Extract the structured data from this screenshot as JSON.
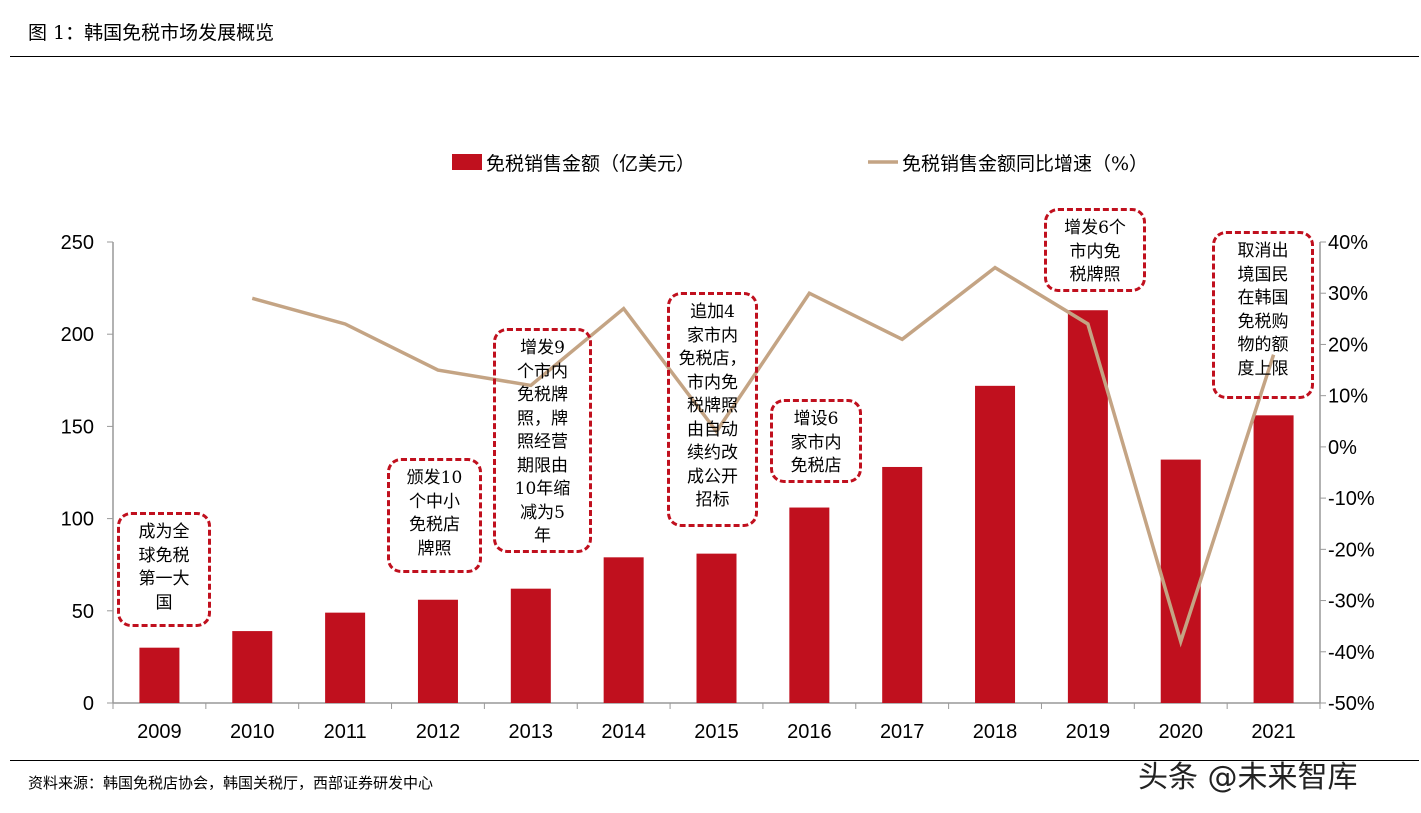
{
  "header": {
    "title": "图 1：韩国免税市场发展概览"
  },
  "footer": {
    "source": "资料来源：韩国免税店协会，韩国关税厅，西部证券研发中心",
    "watermark": "头条 @未来智库"
  },
  "chart_data": {
    "type": "bar+line",
    "categories": [
      "2009",
      "2010",
      "2011",
      "2012",
      "2013",
      "2014",
      "2015",
      "2016",
      "2017",
      "2018",
      "2019",
      "2020",
      "2021"
    ],
    "series": [
      {
        "name": "免税销售金额（亿美元）",
        "type": "bar",
        "axis": "left",
        "color": "#c0101e",
        "values": [
          30,
          39,
          49,
          56,
          62,
          79,
          81,
          106,
          128,
          172,
          213,
          132,
          156
        ]
      },
      {
        "name": "免税销售金额同比增速（%）",
        "type": "line",
        "axis": "right",
        "color": "#c4a484",
        "values": [
          null,
          29,
          24,
          15,
          12,
          27,
          3,
          30,
          21,
          35,
          24,
          -38,
          18
        ]
      }
    ],
    "left_axis": {
      "ylim": [
        0,
        250
      ],
      "ticks": [
        "0",
        "50",
        "100",
        "150",
        "200",
        "250"
      ]
    },
    "right_axis": {
      "ylim": [
        -50,
        40
      ],
      "ticks": [
        "-50%",
        "-40%",
        "-30%",
        "-20%",
        "-10%",
        "0%",
        "10%",
        "20%",
        "30%",
        "40%"
      ]
    },
    "legend": "top",
    "grid": false,
    "annotations": [
      {
        "year": "2009",
        "lines": [
          "成为全",
          "球免税",
          "第一大",
          "国"
        ]
      },
      {
        "year": "2012",
        "lines": [
          "颁发10",
          "个中小",
          "免税店",
          "牌照"
        ]
      },
      {
        "year": "2013",
        "lines": [
          "增发9",
          "个市内",
          "免税牌",
          "照，牌",
          "照经营",
          "期限由",
          "10年缩",
          "减为5",
          "年"
        ]
      },
      {
        "year": "2015",
        "lines": [
          "追加4",
          "家市内",
          "免税店，",
          "市内免",
          "税牌照",
          "由自动",
          "续约改",
          "成公开",
          "招标"
        ]
      },
      {
        "year": "2016",
        "lines": [
          "增设6",
          "家市内",
          "免税店"
        ]
      },
      {
        "year": "2019",
        "lines": [
          "增发6个",
          "市内免",
          "税牌照"
        ]
      },
      {
        "year": "2021",
        "lines": [
          "取消出",
          "境国民",
          "在韩国",
          "免税购",
          "物的额",
          "度上限"
        ]
      }
    ]
  }
}
